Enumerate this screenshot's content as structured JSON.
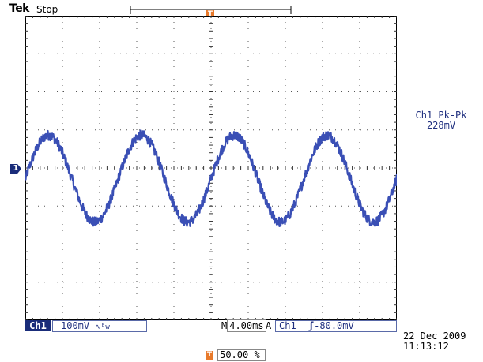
{
  "header": {
    "brand": "Tek",
    "status": "Stop"
  },
  "measurement": {
    "label": "Ch1 Pk-Pk",
    "value": "228mV"
  },
  "bottom": {
    "channel": "Ch1",
    "volts_div": "100mV",
    "bw_symbol": "∿ᴮw",
    "time_label": "M",
    "time_div": "4.00ms",
    "trigger_mode": "A",
    "trigger_source": "Ch1",
    "trigger_slope": "ʃ",
    "trigger_level": "-80.0mV",
    "date": "22 Dec 2009",
    "time": "11:13:12",
    "trigger_position": "50.00 %"
  },
  "markers": {
    "channel_marker": "1",
    "trigger_marker": "T"
  },
  "colors": {
    "trace": "#3a4fb5",
    "marker_orange": "#e8792a",
    "channel_blue": "#1a2d7a"
  },
  "chart_data": {
    "type": "line",
    "title": "",
    "xlabel": "",
    "ylabel": "",
    "divisions": {
      "x": 10,
      "y": 8
    },
    "x_units": "ms",
    "y_units": "mV",
    "xlim": [
      -20,
      20
    ],
    "ylim": [
      -400,
      400
    ],
    "series": [
      {
        "waveform": "sine",
        "frequency_hz": 100,
        "pk_pk_mV": 228,
        "offset_mV": -28,
        "phase_deg": 0,
        "x": [
          -20,
          -17.5,
          -15,
          -12.5,
          -10,
          -7.5,
          -5,
          -2.5,
          0,
          2.5,
          5,
          7.5,
          10,
          12.5,
          15,
          17.5,
          20
        ],
        "y": [
          -28,
          86,
          -28,
          -142,
          -28,
          86,
          -28,
          -142,
          -28,
          86,
          -28,
          -142,
          -28,
          86,
          -28,
          -142,
          -28
        ]
      }
    ]
  }
}
